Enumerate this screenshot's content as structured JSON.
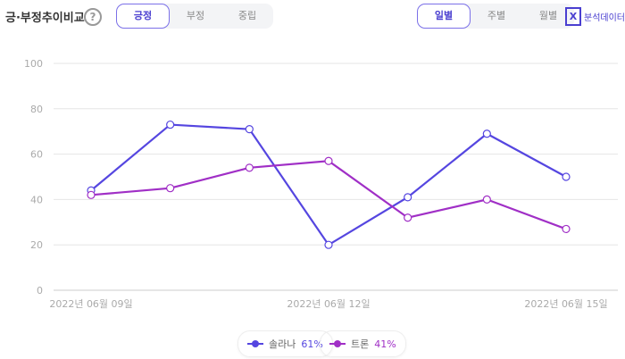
{
  "header": {
    "title": "긍·부정추이비교",
    "help_icon": "?",
    "sentiment_tabs": [
      "긍정",
      "부정",
      "중립"
    ],
    "sentiment_active": 0,
    "period_tabs": [
      "일별",
      "주별",
      "월별"
    ],
    "period_active": 0,
    "brand": {
      "icon": "X",
      "label": "분석데이터"
    }
  },
  "chart_data": {
    "type": "line",
    "x": [
      "2022-06-09",
      "2022-06-10",
      "2022-06-11",
      "2022-06-12",
      "2022-06-13",
      "2022-06-14",
      "2022-06-15"
    ],
    "x_tick_labels": [
      "2022년 06월 09일",
      "2022년 06월 12일",
      "2022년 06월 15일"
    ],
    "y_ticks": [
      0,
      20,
      40,
      60,
      80,
      100
    ],
    "ylim": [
      0,
      100
    ],
    "grid": true,
    "legend_placement": "bottom",
    "series": [
      {
        "name": "솔라나",
        "share": "61%",
        "color": "#5546e0",
        "values": [
          44,
          73,
          71,
          20,
          41,
          69,
          50
        ]
      },
      {
        "name": "트론",
        "share": "41%",
        "color": "#a02fc6",
        "values": [
          42,
          45,
          54,
          57,
          32,
          40,
          27
        ]
      }
    ]
  }
}
